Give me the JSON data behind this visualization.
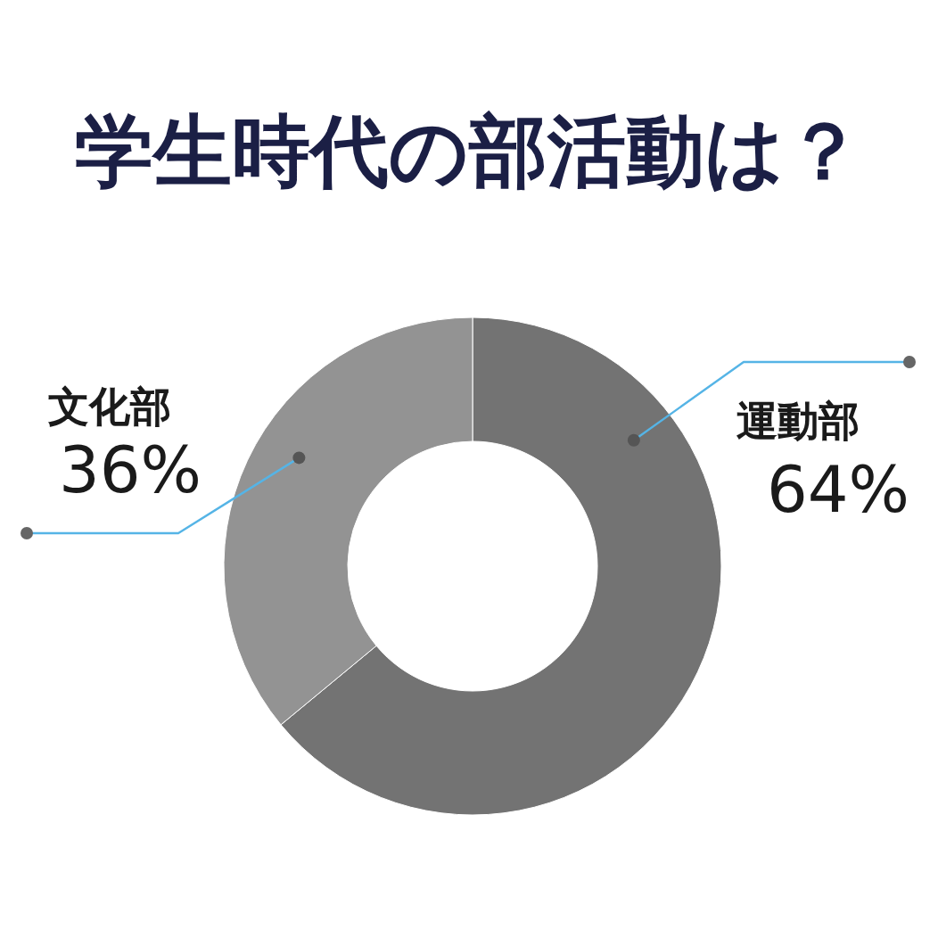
{
  "chart_data": {
    "type": "donut",
    "title": "学生時代の部活動は？",
    "categories": [
      "運動部",
      "文化部"
    ],
    "values": [
      64,
      36
    ],
    "colors": [
      "#737373",
      "#939393"
    ],
    "value_labels": [
      "64%",
      "36%"
    ]
  }
}
